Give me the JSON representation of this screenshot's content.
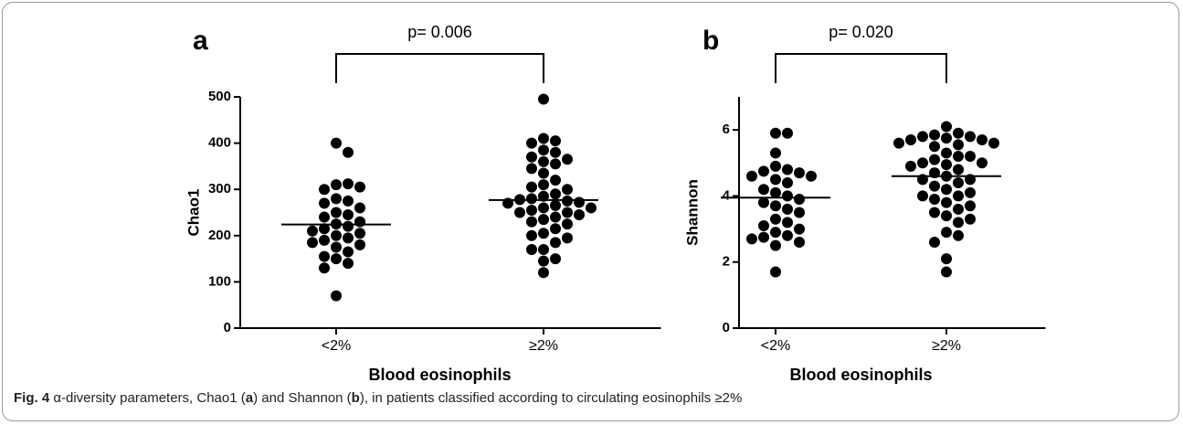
{
  "chart_data": [
    {
      "type": "strip",
      "panel": "a",
      "annotation": "p= 0.006",
      "ylabel": "Chao1",
      "xlabel": "Blood eosinophils",
      "categories": [
        "<2%",
        "≥2%"
      ],
      "values": [
        [
          400,
          380,
          310,
          312,
          300,
          305,
          280,
          275,
          270,
          260,
          250,
          245,
          240,
          230,
          225,
          220,
          215,
          210,
          205,
          200,
          195,
          190,
          185,
          180,
          175,
          165,
          155,
          150,
          140,
          130,
          70
        ],
        [
          495,
          410,
          405,
          400,
          385,
          380,
          370,
          365,
          360,
          355,
          345,
          335,
          320,
          310,
          305,
          300,
          290,
          285,
          280,
          278,
          275,
          272,
          270,
          265,
          260,
          260,
          255,
          250,
          250,
          245,
          240,
          235,
          230,
          225,
          215,
          205,
          200,
          195,
          185,
          170,
          170,
          150,
          145,
          120
        ]
      ],
      "medians": [
        224,
        277
      ],
      "color": "#000000",
      "ylim": [
        0,
        500
      ],
      "yticks": [
        0,
        100,
        200,
        300,
        400,
        500
      ]
    },
    {
      "type": "strip",
      "panel": "b",
      "annotation": "p= 0.020",
      "ylabel": "Shannon",
      "xlabel": "Blood eosinophils",
      "categories": [
        "<2%",
        "≥2%"
      ],
      "values": [
        [
          5.9,
          5.9,
          5.3,
          4.9,
          4.8,
          4.75,
          4.7,
          4.6,
          4.6,
          4.5,
          4.4,
          4.2,
          4.1,
          4.0,
          3.9,
          3.8,
          3.7,
          3.6,
          3.5,
          3.3,
          3.2,
          3.1,
          3.0,
          2.9,
          2.8,
          2.75,
          2.7,
          2.6,
          2.5,
          1.7
        ],
        [
          6.1,
          5.9,
          5.85,
          5.8,
          5.8,
          5.75,
          5.7,
          5.7,
          5.6,
          5.6,
          5.55,
          5.5,
          5.3,
          5.2,
          5.2,
          5.1,
          5.0,
          5.0,
          4.95,
          4.9,
          4.8,
          4.7,
          4.6,
          4.5,
          4.5,
          4.4,
          4.3,
          4.2,
          4.1,
          4.0,
          4.0,
          3.9,
          3.8,
          3.7,
          3.6,
          3.5,
          3.4,
          3.3,
          3.2,
          2.9,
          2.8,
          2.6,
          2.1,
          1.7
        ]
      ],
      "medians": [
        3.95,
        4.6
      ],
      "color": "#000000",
      "ylim": [
        0,
        7
      ],
      "yticks": [
        0,
        2,
        4,
        6
      ]
    }
  ],
  "caption": {
    "label": "Fig. 4",
    "parts": [
      " α-diversity parameters, Chao1 (",
      "a",
      ") and Shannon (",
      "b",
      "), in patients classified according to circulating eosinophils ≥2%"
    ]
  }
}
